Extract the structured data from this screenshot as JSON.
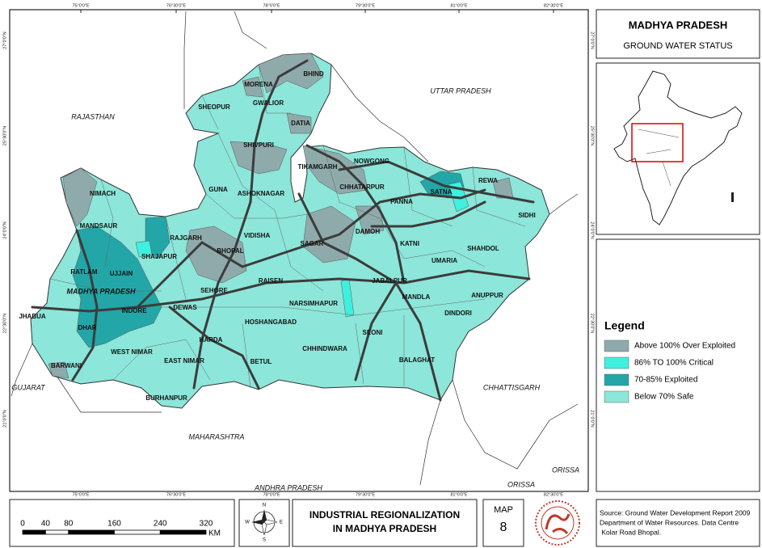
{
  "header": {
    "title": "MADHYA PRADESH",
    "subtitle": "GROUND WATER STATUS"
  },
  "map": {
    "longitude_labels": [
      "75°0'0\"E",
      "76°30'0\"E",
      "78°0'0\"E",
      "79°30'0\"E",
      "81°0'0\"E",
      "82°30'0\"E"
    ],
    "latitude_labels": [
      "27°0'0\"N",
      "25°30'0\"N",
      "24°0'0\"N",
      "22°30'0\"N",
      "21°0'0\"N"
    ],
    "state_label": "MADHYA PRADESH",
    "neighbors": [
      "RAJASTHAN",
      "UTTAR PRADESH",
      "CHHATTISGARH",
      "GUJARAT",
      "MAHARASHTRA",
      "ORISSA",
      "ANDHRA PRADESH",
      "ORISSA"
    ],
    "districts": [
      "MORENA",
      "BHIND",
      "SHEOPUR",
      "GWALIOR",
      "DATIA",
      "SHIVPURI",
      "TIKAMGARH",
      "NOWGONG",
      "CHHATARPUR",
      "PANNA",
      "SATNA",
      "REWA",
      "SIDHI",
      "NIMACH",
      "GUNA",
      "ASHOKNAGAR",
      "MANDSAUR",
      "RAJGARH",
      "VIDISHA",
      "SAGAR",
      "DAMOH",
      "KATNI",
      "SHAHDOL",
      "SHAJAPUR",
      "BHOPAL",
      "UMARIA",
      "RATLAM",
      "UJJAIN",
      "RAISEN",
      "JABALPUR",
      "ANUPPUR",
      "SEHORE",
      "INDORE",
      "DEWAS",
      "NARSIMHAPUR",
      "MANDLA",
      "DINDORI",
      "JHABUA",
      "HOSHANGABAD",
      "DHAR",
      "SEONI",
      "HARDA",
      "CHHINDWARA",
      "WEST NIMAR",
      "EAST NIMAR",
      "BETUL",
      "BALAGHAT",
      "BARWANI",
      "BURHANPUR"
    ]
  },
  "legend": {
    "title": "Legend",
    "items": [
      {
        "label": "Above 100% Over Exploited",
        "color": "#8faaab"
      },
      {
        "label": "86% TO 100%  Critical",
        "color": "#3ff0df"
      },
      {
        "label": "70-85% Exploited",
        "color": "#22a6a8"
      },
      {
        "label": "Below 70% Safe",
        "color": "#8ce6d9"
      }
    ]
  },
  "scale_bar": {
    "ticks": [
      0,
      40,
      80,
      160,
      240,
      320
    ],
    "unit": "KM"
  },
  "compass": {
    "north": "N",
    "south": "S",
    "east": "E",
    "west": "W"
  },
  "footer": {
    "title_lines": [
      "INDUSTRIAL REGIONALIZATION",
      "IN MADHYA PRADESH"
    ],
    "map_label": "MAP",
    "map_number": "8",
    "source_lines": [
      "Source: Ground Water Development Report 2009",
      "Department of Water Resources. Data Centre",
      " Kolar Road Bhopal."
    ]
  }
}
